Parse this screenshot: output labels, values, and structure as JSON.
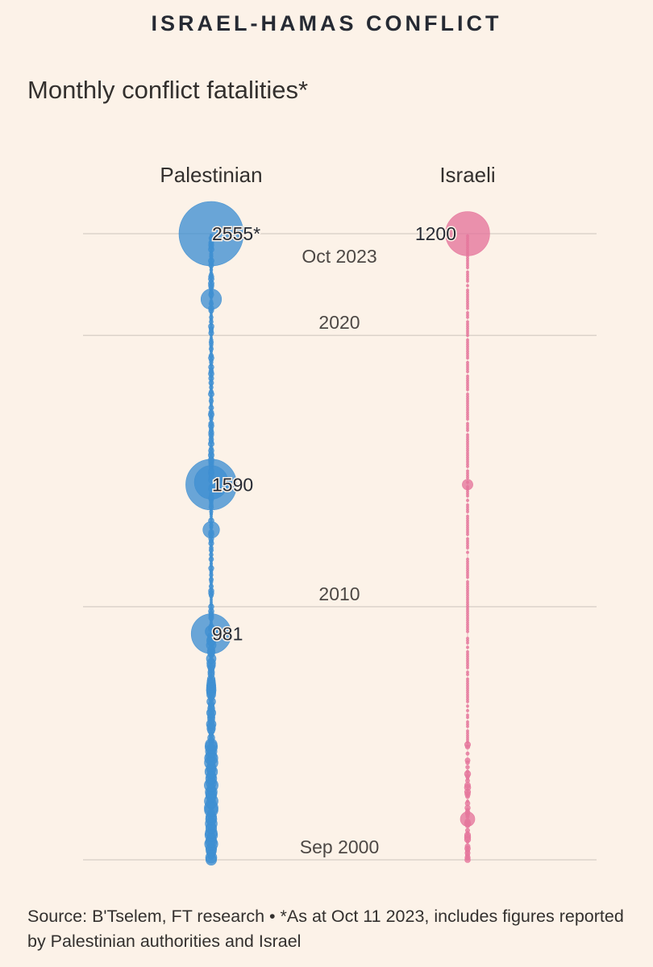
{
  "header": {
    "kicker": "ISRAEL-HAMAS CONFLICT",
    "subtitle": "Monthly conflict fatalities*"
  },
  "chart_data": {
    "type": "scatter",
    "title": "Monthly conflict fatalities*",
    "series": [
      {
        "name": "Palestinian",
        "color": "#3f8fd2",
        "annotated": [
          {
            "date": "2023-10",
            "value": 2555,
            "label": "2555*"
          },
          {
            "date": "2014-07",
            "value": 1590,
            "label": "1590"
          },
          {
            "date": "2009-01",
            "value": 981,
            "label": "981"
          }
        ]
      },
      {
        "name": "Israeli",
        "color": "#e5779c",
        "annotated": [
          {
            "date": "2023-10",
            "value": 1200,
            "label": "1200"
          }
        ]
      }
    ],
    "time_axis": {
      "start": "2000-09",
      "end": "2023-10",
      "reference_lines": [
        {
          "date": "2023-10",
          "label": "Oct 2023"
        },
        {
          "date": "2020-01",
          "label": "2020"
        },
        {
          "date": "2010-01",
          "label": "2010"
        },
        {
          "date": "2000-09",
          "label": "Sep 2000"
        }
      ]
    },
    "encoding": "circle area proportional to monthly fatalities"
  },
  "footer": {
    "source": "Source: B'Tselem, FT research • *As at Oct 11 2023, includes figures reported by Palestinian authorities and Israel"
  }
}
